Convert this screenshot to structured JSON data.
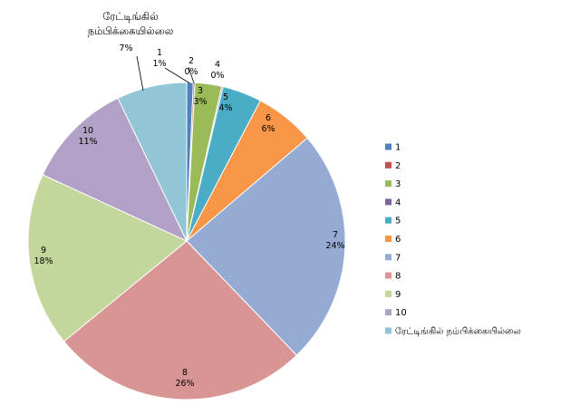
{
  "chart_data": {
    "type": "pie",
    "title_lines": [
      "ரேட்டிங்கில்",
      "நம்பிக்கையில்லை"
    ],
    "categories": [
      "1",
      "2",
      "3",
      "4",
      "5",
      "6",
      "7",
      "8",
      "9",
      "10",
      "ரேட்டிங்கில் நம்பிக்கையில்லை"
    ],
    "values": [
      1,
      0,
      3,
      0,
      4,
      6,
      24,
      26,
      18,
      11,
      7
    ],
    "display_angles_deg": [
      2.4,
      0.6,
      9.8,
      0.5,
      14.4,
      21.8,
      86.6,
      94.6,
      64.0,
      39.6,
      25.7
    ],
    "data_labels": [
      {
        "category": "1",
        "value": "1%"
      },
      {
        "category": "2",
        "value": "0%"
      },
      {
        "category": "3",
        "value": "3%"
      },
      {
        "category": "4",
        "value": "0%"
      },
      {
        "category": "5",
        "value": "4%"
      },
      {
        "category": "6",
        "value": "6%"
      },
      {
        "category": "7",
        "value": "24%"
      },
      {
        "category": "8",
        "value": "26%"
      },
      {
        "category": "9",
        "value": "18%"
      },
      {
        "category": "10",
        "value": "11%"
      },
      {
        "category": "",
        "value": "7%"
      }
    ],
    "colors": [
      "#4f81bd",
      "#c0504d",
      "#9bbb59",
      "#8064a2",
      "#4bacc6",
      "#f79646",
      "#95abd4",
      "#d89594",
      "#c3d69b",
      "#b2a1c7",
      "#92c5d6"
    ],
    "legend": {
      "position": "right",
      "entries": [
        "1",
        "2",
        "3",
        "4",
        "5",
        "6",
        "7",
        "8",
        "9",
        "10",
        "ரேட்டிங்கில்   நம்பிக்கையில்லை"
      ]
    }
  }
}
